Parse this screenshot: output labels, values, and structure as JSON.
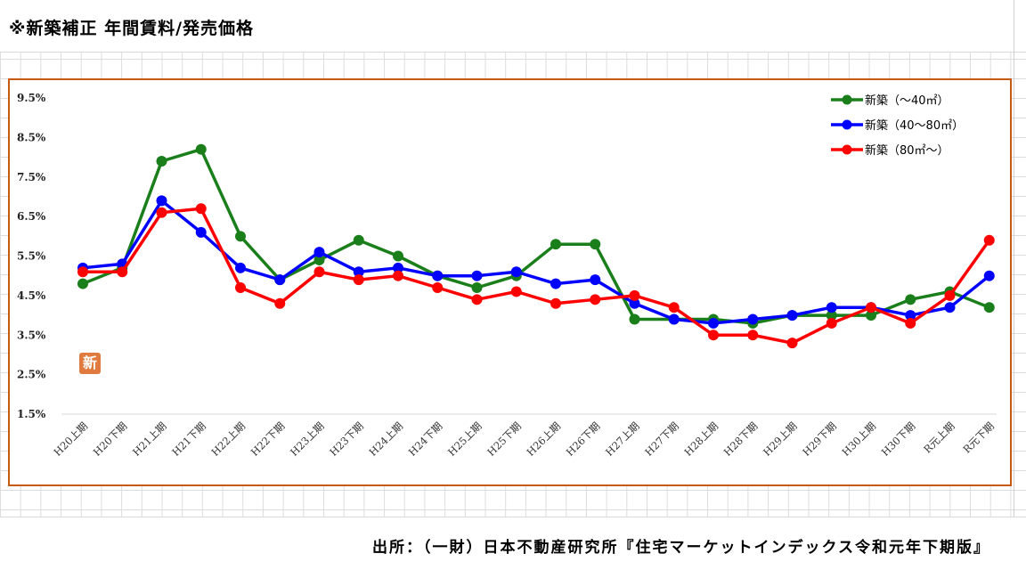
{
  "header": {
    "title": "※新築補正 年間賃料/発売価格"
  },
  "footer": {
    "source": "出所：（一財）日本不動産研究所『住宅マーケットインデックス令和元年下期版』"
  },
  "badge": {
    "label": "新"
  },
  "colors": {
    "frame": "#c55a11",
    "green": "#1a7f1a",
    "blue": "#0000ff",
    "red": "#ff0000"
  },
  "chart_data": {
    "type": "line",
    "title": "",
    "xlabel": "",
    "ylabel": "",
    "ylim": [
      1.5,
      9.5
    ],
    "yticks": [
      "1.5%",
      "2.5%",
      "3.5%",
      "4.5%",
      "5.5%",
      "6.5%",
      "7.5%",
      "8.5%",
      "9.5%"
    ],
    "ytick_values": [
      1.5,
      2.5,
      3.5,
      4.5,
      5.5,
      6.5,
      7.5,
      8.5,
      9.5
    ],
    "grid": false,
    "legend_position": "top-right",
    "categories": [
      "H20上期",
      "H20下期",
      "H21上期",
      "H21下期",
      "H22上期",
      "H22下期",
      "H23上期",
      "H23下期",
      "H24上期",
      "H24下期",
      "H25上期",
      "H25下期",
      "H26上期",
      "H26下期",
      "H27上期",
      "H27下期",
      "H28上期",
      "H28下期",
      "H29上期",
      "H29下期",
      "H30上期",
      "H30下期",
      "R元上期",
      "R元下期"
    ],
    "series": [
      {
        "name": "新築（～40㎡）",
        "color": "#1a7f1a",
        "values": [
          4.8,
          5.2,
          7.9,
          8.2,
          6.0,
          4.9,
          5.4,
          5.9,
          5.5,
          5.0,
          4.7,
          5.0,
          5.8,
          5.8,
          3.9,
          3.9,
          3.9,
          3.8,
          4.0,
          4.0,
          4.0,
          4.4,
          4.6,
          4.2
        ]
      },
      {
        "name": "新築（40～80㎡）",
        "color": "#0000ff",
        "values": [
          5.2,
          5.3,
          6.9,
          6.1,
          5.2,
          4.9,
          5.6,
          5.1,
          5.2,
          5.0,
          5.0,
          5.1,
          4.8,
          4.9,
          4.3,
          3.9,
          3.8,
          3.9,
          4.0,
          4.2,
          4.2,
          4.0,
          4.2,
          5.0
        ]
      },
      {
        "name": "新築（80㎡～）",
        "color": "#ff0000",
        "values": [
          5.1,
          5.1,
          6.6,
          6.7,
          4.7,
          4.3,
          5.1,
          4.9,
          5.0,
          4.7,
          4.4,
          4.6,
          4.3,
          4.4,
          4.5,
          4.2,
          3.5,
          3.5,
          3.3,
          3.8,
          4.2,
          3.8,
          4.5,
          5.9
        ]
      }
    ]
  }
}
